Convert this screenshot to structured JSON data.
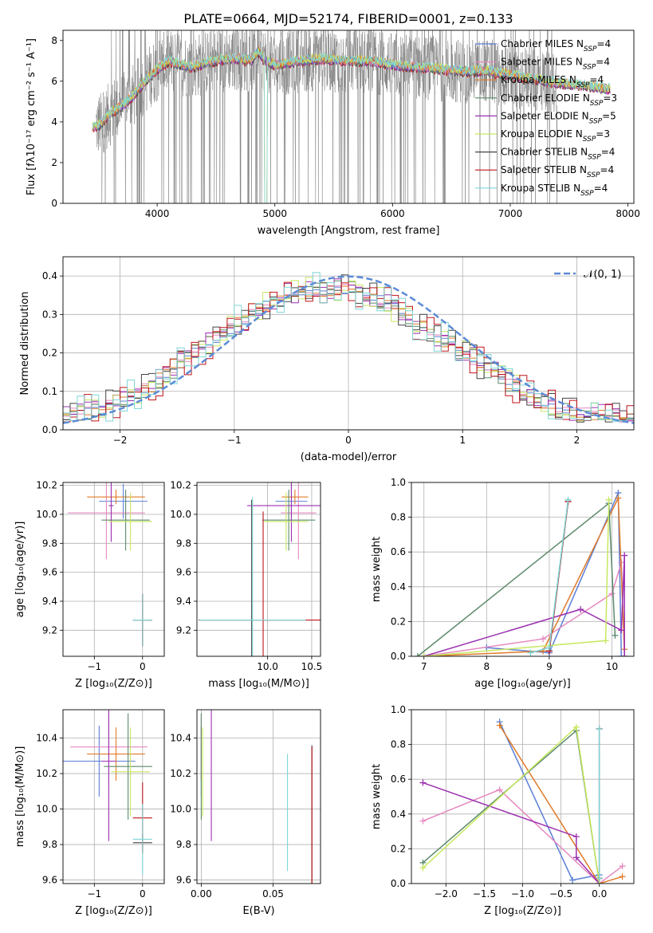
{
  "figure": {
    "title": "PLATE=0664, MJD=52174, FIBERID=0001, z=0.133"
  },
  "colors": {
    "Chabrier MILES": "#5b7fd6",
    "Salpeter MILES": "#e58ac0",
    "Kroupa MILES": "#e07b2a",
    "Chabrier ELODIE": "#5a8a6a",
    "Salpeter ELODIE": "#9b30b0",
    "Kroupa ELODIE": "#c8e860",
    "Chabrier STELIB": "#444444",
    "Salpeter STELIB": "#c0141c",
    "Kroupa STELIB": "#7fd6d6",
    "data": "#7f7f7f",
    "normal": "#5b8bd6"
  },
  "chart_data": [
    {
      "id": "spectrum",
      "type": "line",
      "xlabel": "wavelength [Angstrom, rest frame]",
      "ylabel": "Flux [fλ10⁻¹⁷ erg cm⁻² s⁻¹ A⁻¹]",
      "xlim": [
        3200,
        8050
      ],
      "ylim": [
        0,
        8.5
      ],
      "xticks": [
        4000,
        5000,
        6000,
        7000,
        8000
      ],
      "yticks": [
        0,
        2,
        4,
        6,
        8
      ],
      "legend_location": "upper right",
      "legend": [
        {
          "name": "Chabrier MILES",
          "sub": "SSP",
          "n": "=4"
        },
        {
          "name": "Salpeter MILES",
          "sub": "SSP",
          "n": "=4"
        },
        {
          "name": "Kroupa MILES",
          "sub": "SSP",
          "n": "=4"
        },
        {
          "name": "Chabrier ELODIE",
          "sub": "SSP",
          "n": "=3"
        },
        {
          "name": "Salpeter ELODIE",
          "sub": "SSP",
          "n": "=5"
        },
        {
          "name": "Kroupa ELODIE",
          "sub": "SSP",
          "n": "=3"
        },
        {
          "name": "Chabrier STELIB",
          "sub": "SSP",
          "n": "=4"
        },
        {
          "name": "Salpeter STELIB",
          "sub": "SSP",
          "n": "=4"
        },
        {
          "name": "Kroupa STELIB",
          "sub": "SSP",
          "n": "=4"
        }
      ],
      "data_range": [
        3480,
        7400
      ],
      "model_envelope": [
        [
          3450,
          3.7
        ],
        [
          3520,
          3.9
        ],
        [
          3600,
          4.4
        ],
        [
          3700,
          4.8
        ],
        [
          3800,
          5.3
        ],
        [
          3900,
          6.0
        ],
        [
          4000,
          6.6
        ],
        [
          4100,
          7.0
        ],
        [
          4200,
          6.8
        ],
        [
          4300,
          6.7
        ],
        [
          4400,
          6.9
        ],
        [
          4500,
          7.0
        ],
        [
          4600,
          7.1
        ],
        [
          4700,
          7.1
        ],
        [
          4800,
          7.0
        ],
        [
          4860,
          7.5
        ],
        [
          4900,
          7.1
        ],
        [
          5000,
          6.8
        ],
        [
          5200,
          7.0
        ],
        [
          5400,
          7.1
        ],
        [
          5600,
          7.0
        ],
        [
          5800,
          7.0
        ],
        [
          6000,
          6.8
        ],
        [
          6200,
          6.7
        ],
        [
          6400,
          6.6
        ],
        [
          6600,
          6.5
        ],
        [
          6800,
          6.5
        ],
        [
          7000,
          6.3
        ],
        [
          7200,
          6.1
        ],
        [
          7400,
          5.9
        ],
        [
          7600,
          5.8
        ],
        [
          7850,
          5.6
        ]
      ]
    },
    {
      "id": "residuals",
      "type": "step",
      "xlabel": "(data-model)/error",
      "ylabel": "Normed distribution",
      "xlim": [
        -2.5,
        2.5
      ],
      "ylim": [
        0,
        0.45
      ],
      "xticks": [
        -2,
        -1,
        0,
        1,
        2
      ],
      "yticks": [
        0.0,
        0.1,
        0.2,
        0.3,
        0.4
      ],
      "legend": "𝒩(0, 1)",
      "normal_mu": 0,
      "normal_sigma": 1,
      "bin_width": 0.1,
      "bin_start": -2.5,
      "histogram_center": [
        0.035,
        0.04,
        0.048,
        0.052,
        0.057,
        0.06,
        0.066,
        0.072,
        0.08,
        0.088,
        0.096,
        0.106,
        0.118,
        0.13,
        0.145,
        0.158,
        0.172,
        0.188,
        0.2,
        0.214,
        0.226,
        0.238,
        0.25,
        0.262,
        0.275,
        0.288,
        0.3,
        0.312,
        0.325,
        0.336,
        0.344,
        0.352,
        0.358,
        0.362,
        0.364,
        0.365,
        0.366,
        0.366,
        0.365,
        0.364,
        0.362,
        0.358,
        0.352,
        0.345,
        0.337,
        0.327,
        0.316,
        0.304,
        0.292,
        0.28,
        0.268,
        0.256,
        0.244,
        0.232,
        0.221,
        0.21,
        0.198,
        0.186,
        0.173,
        0.16,
        0.147,
        0.134,
        0.122,
        0.11,
        0.099,
        0.088,
        0.078,
        0.07,
        0.063,
        0.056,
        0.05,
        0.045,
        0.042,
        0.04,
        0.038,
        0.036,
        0.036,
        0.035,
        0.035,
        0.035
      ],
      "histogram_variations": [
        0.012,
        0.018,
        0.02,
        0.025,
        0.03,
        0.035,
        0.04,
        0.045,
        0.05,
        0.055
      ]
    },
    {
      "id": "age_vs_Z",
      "type": "errorbar",
      "xlabel": "Z [log₁₀(Z/Z⊙)]",
      "ylabel": "age  [log₁₀(age/yr)]",
      "xlim": [
        -1.65,
        0.45
      ],
      "ylim": [
        9.02,
        10.22
      ],
      "xticks": [
        -1,
        0
      ],
      "yticks": [
        9.2,
        9.4,
        9.6,
        9.8,
        10.0,
        10.2
      ],
      "points": [
        {
          "s": "Chabrier MILES",
          "x": -0.4,
          "xerr": 0.5,
          "y": 10.09,
          "yerr": 0.12
        },
        {
          "s": "Salpeter MILES",
          "x": -0.75,
          "xerr": 0.8,
          "y": 10.01,
          "yerr": 0.32
        },
        {
          "s": "Kroupa MILES",
          "x": -0.55,
          "xerr": 0.6,
          "y": 10.12,
          "yerr": 0.05
        },
        {
          "s": "Chabrier ELODIE",
          "x": -0.35,
          "xerr": 0.5,
          "y": 9.96,
          "yerr": 0.21
        },
        {
          "s": "Salpeter ELODIE",
          "x": -0.65,
          "xerr": 0.05,
          "y": 10.06,
          "yerr": 0.25
        },
        {
          "s": "Kroupa ELODIE",
          "x": -0.25,
          "xerr": 0.45,
          "y": 9.95,
          "yerr": 0.2
        },
        {
          "s": "Chabrier STELIB",
          "x": 0.0,
          "xerr": 0.2,
          "y": 9.27,
          "yerr": 0.18
        },
        {
          "s": "Salpeter STELIB",
          "x": 0.0,
          "xerr": 0.2,
          "y": 9.27,
          "yerr": 0.18
        },
        {
          "s": "Kroupa STELIB",
          "x": 0.0,
          "xerr": 0.2,
          "y": 9.27,
          "yerr": 0.18
        }
      ]
    },
    {
      "id": "age_vs_mass",
      "type": "errorbar",
      "xlabel": "mass [log₁₀(M/M⊙)]",
      "ylabel": "",
      "xlim": [
        9.2,
        10.6
      ],
      "ylim": [
        9.02,
        10.22
      ],
      "xticks": [
        10.0,
        10.5
      ],
      "xtick_labels": [
        "10.0",
        "10.5"
      ],
      "yticks": [
        9.2,
        9.4,
        9.6,
        9.8,
        10.0,
        10.2
      ],
      "points": [
        {
          "s": "Chabrier MILES",
          "x": 10.27,
          "xerr": 0.18,
          "y": 10.09,
          "yerr": 0.12
        },
        {
          "s": "Salpeter MILES",
          "x": 10.35,
          "xerr": 0.2,
          "y": 10.01,
          "yerr": 0.32
        },
        {
          "s": "Kroupa MILES",
          "x": 10.31,
          "xerr": 0.15,
          "y": 10.12,
          "yerr": 0.05
        },
        {
          "s": "Chabrier ELODIE",
          "x": 10.24,
          "xerr": 0.3,
          "y": 9.96,
          "yerr": 0.21
        },
        {
          "s": "Salpeter ELODIE",
          "x": 10.27,
          "xerr": 0.5,
          "y": 10.06,
          "yerr": 0.25
        },
        {
          "s": "Kroupa ELODIE",
          "x": 10.21,
          "xerr": 0.25,
          "y": 9.95,
          "yerr": 0.2
        },
        {
          "s": "Chabrier STELIB",
          "x": 9.82,
          "xerr": 0.6,
          "y": 9.27,
          "yerr": 0.83
        },
        {
          "s": "Salpeter STELIB",
          "x": 9.95,
          "xerr": 0.7,
          "y": 9.27,
          "yerr": 0.75
        },
        {
          "s": "Kroupa STELIB",
          "x": 9.83,
          "xerr": 0.6,
          "y": 9.27,
          "yerr": 0.85
        }
      ]
    },
    {
      "id": "massweight_vs_age",
      "type": "line",
      "xlabel": "age  [log₁₀(age/yr)]",
      "ylabel": "mass weight",
      "xlim": [
        6.8,
        10.35
      ],
      "ylim": [
        0,
        1
      ],
      "xticks": [
        7,
        8,
        9,
        10
      ],
      "yticks": [
        0.0,
        0.2,
        0.4,
        0.6,
        0.8,
        1.0
      ],
      "series": [
        {
          "s": "Chabrier MILES",
          "x": [
            8.0,
            9.0,
            10.1,
            10.15
          ],
          "y": [
            0.05,
            0.02,
            0.94,
            0.0
          ]
        },
        {
          "s": "Salpeter MILES",
          "x": [
            7.0,
            8.9,
            10.0,
            10.15,
            10.2
          ],
          "y": [
            0.0,
            0.1,
            0.36,
            0.54,
            0.0
          ]
        },
        {
          "s": "Kroupa MILES",
          "x": [
            7.0,
            8.9,
            10.1,
            10.2
          ],
          "y": [
            0.0,
            0.03,
            0.91,
            0.04
          ]
        },
        {
          "s": "Chabrier ELODIE",
          "x": [
            6.9,
            9.95,
            10.05
          ],
          "y": [
            0.0,
            0.88,
            0.12
          ]
        },
        {
          "s": "Salpeter ELODIE",
          "x": [
            7.0,
            9.5,
            10.15,
            10.2,
            10.2
          ],
          "y": [
            0.0,
            0.27,
            0.15,
            0.58,
            0.0
          ]
        },
        {
          "s": "Kroupa ELODIE",
          "x": [
            7.0,
            9.9,
            9.95
          ],
          "y": [
            0.0,
            0.09,
            0.9
          ]
        },
        {
          "s": "Chabrier STELIB",
          "x": [
            9.0,
            9.3
          ],
          "y": [
            0.03,
            0.89
          ]
        },
        {
          "s": "Salpeter STELIB",
          "x": [
            9.0,
            9.3
          ],
          "y": [
            0.03,
            0.89
          ]
        },
        {
          "s": "Kroupa STELIB",
          "x": [
            8.7,
            9.0,
            9.3
          ],
          "y": [
            0.02,
            0.05,
            0.9
          ]
        }
      ]
    },
    {
      "id": "mass_vs_Z",
      "type": "errorbar",
      "xlabel": "Z [log₁₀(Z/Z⊙)]",
      "ylabel": "mass [log₁₀(M/M⊙)]",
      "xlim": [
        -1.65,
        0.45
      ],
      "ylim": [
        9.58,
        10.56
      ],
      "xticks": [
        -1,
        0
      ],
      "yticks": [
        9.6,
        9.8,
        10.0,
        10.2,
        10.4
      ],
      "points": [
        {
          "s": "Chabrier MILES",
          "x": -0.9,
          "xerr": 0.75,
          "y": 10.27,
          "yerr": 0.2
        },
        {
          "s": "Salpeter MILES",
          "x": -0.7,
          "xerr": 0.8,
          "y": 10.35,
          "yerr": 0.18
        },
        {
          "s": "Kroupa MILES",
          "x": -0.55,
          "xerr": 0.6,
          "y": 10.31,
          "yerr": 0.15
        },
        {
          "s": "Chabrier ELODIE",
          "x": -0.3,
          "xerr": 0.5,
          "y": 10.24,
          "yerr": 0.3
        },
        {
          "s": "Salpeter ELODIE",
          "x": -0.7,
          "xerr": 0.15,
          "y": 10.27,
          "yerr": 0.45
        },
        {
          "s": "Kroupa ELODIE",
          "x": -0.25,
          "xerr": 0.4,
          "y": 10.21,
          "yerr": 0.25
        },
        {
          "s": "Chabrier STELIB",
          "x": 0.0,
          "xerr": 0.2,
          "y": 9.81,
          "yerr": 0.05
        },
        {
          "s": "Salpeter STELIB",
          "x": 0.0,
          "xerr": 0.2,
          "y": 9.95,
          "yerr": 0.2
        },
        {
          "s": "Kroupa STELIB",
          "x": 0.0,
          "xerr": 0.2,
          "y": 9.83,
          "yerr": 0.2
        }
      ]
    },
    {
      "id": "mass_vs_ebv",
      "type": "errorbar",
      "xlabel": "E(B-V)",
      "ylabel": "",
      "xlim": [
        -0.003,
        0.083
      ],
      "ylim": [
        9.58,
        10.56
      ],
      "xticks": [
        0.0,
        0.05
      ],
      "xtick_labels": [
        "0.00",
        "0.05"
      ],
      "yticks": [
        9.6,
        9.8,
        10.0,
        10.2,
        10.4
      ],
      "points": [
        {
          "s": "Chabrier MILES",
          "x": 0.0,
          "xerr": 0,
          "y": 10.27,
          "yerr": 0.2
        },
        {
          "s": "Salpeter MILES",
          "x": 0.0,
          "xerr": 0,
          "y": 10.35,
          "yerr": 0.18
        },
        {
          "s": "Kroupa MILES",
          "x": 0.0,
          "xerr": 0,
          "y": 10.31,
          "yerr": 0.15
        },
        {
          "s": "Chabrier ELODIE",
          "x": 0.0,
          "xerr": 0,
          "y": 10.24,
          "yerr": 0.3
        },
        {
          "s": "Salpeter ELODIE",
          "x": 0.007,
          "xerr": 0,
          "y": 10.27,
          "yerr": 0.45
        },
        {
          "s": "Kroupa ELODIE",
          "x": 0.001,
          "xerr": 0,
          "y": 10.21,
          "yerr": 0.25
        },
        {
          "s": "Chabrier STELIB",
          "x": 0.077,
          "xerr": 0,
          "y": 9.81,
          "yerr": 0.55
        },
        {
          "s": "Salpeter STELIB",
          "x": 0.077,
          "xerr": 0,
          "y": 9.95,
          "yerr": 0.4
        },
        {
          "s": "Kroupa STELIB",
          "x": 0.06,
          "xerr": 0,
          "y": 9.98,
          "yerr": 0.33
        }
      ]
    },
    {
      "id": "massweight_vs_Z",
      "type": "line",
      "xlabel": "Z [log₁₀(Z/Z⊙)]",
      "ylabel": "mass weight",
      "xlim": [
        -2.45,
        0.45
      ],
      "ylim": [
        0,
        1
      ],
      "xticks": [
        -2.0,
        -1.5,
        -1.0,
        -0.5,
        0.0
      ],
      "xtick_labels": [
        "−2.0",
        "−1.5",
        "−1.0",
        "−0.5",
        "0.0"
      ],
      "yticks": [
        0.0,
        0.2,
        0.4,
        0.6,
        0.8,
        1.0
      ],
      "series": [
        {
          "s": "Chabrier MILES",
          "x": [
            -1.3,
            -0.35,
            0.0
          ],
          "y": [
            0.93,
            0.02,
            0.05
          ]
        },
        {
          "s": "Salpeter MILES",
          "x": [
            -2.3,
            -1.3,
            0.0,
            0.3
          ],
          "y": [
            0.36,
            0.54,
            0.0,
            0.1
          ]
        },
        {
          "s": "Kroupa MILES",
          "x": [
            -1.3,
            0.0,
            0.3
          ],
          "y": [
            0.91,
            0.0,
            0.04
          ]
        },
        {
          "s": "Chabrier ELODIE",
          "x": [
            -2.3,
            -0.3,
            0.0
          ],
          "y": [
            0.12,
            0.88,
            0.0
          ]
        },
        {
          "s": "Salpeter ELODIE",
          "x": [
            -2.3,
            -0.3,
            -0.3,
            0.0
          ],
          "y": [
            0.58,
            0.27,
            0.15,
            0.0
          ]
        },
        {
          "s": "Kroupa ELODIE",
          "x": [
            -2.3,
            -0.3,
            0.0
          ],
          "y": [
            0.09,
            0.9,
            0.0
          ]
        },
        {
          "s": "Chabrier STELIB",
          "x": [
            0.0,
            0.0
          ],
          "y": [
            0.89,
            0.03
          ]
        },
        {
          "s": "Salpeter STELIB",
          "x": [
            0.0,
            0.0
          ],
          "y": [
            0.89,
            0.03
          ]
        },
        {
          "s": "Kroupa STELIB",
          "x": [
            0.0,
            0.0
          ],
          "y": [
            0.89,
            0.03
          ]
        }
      ]
    }
  ]
}
